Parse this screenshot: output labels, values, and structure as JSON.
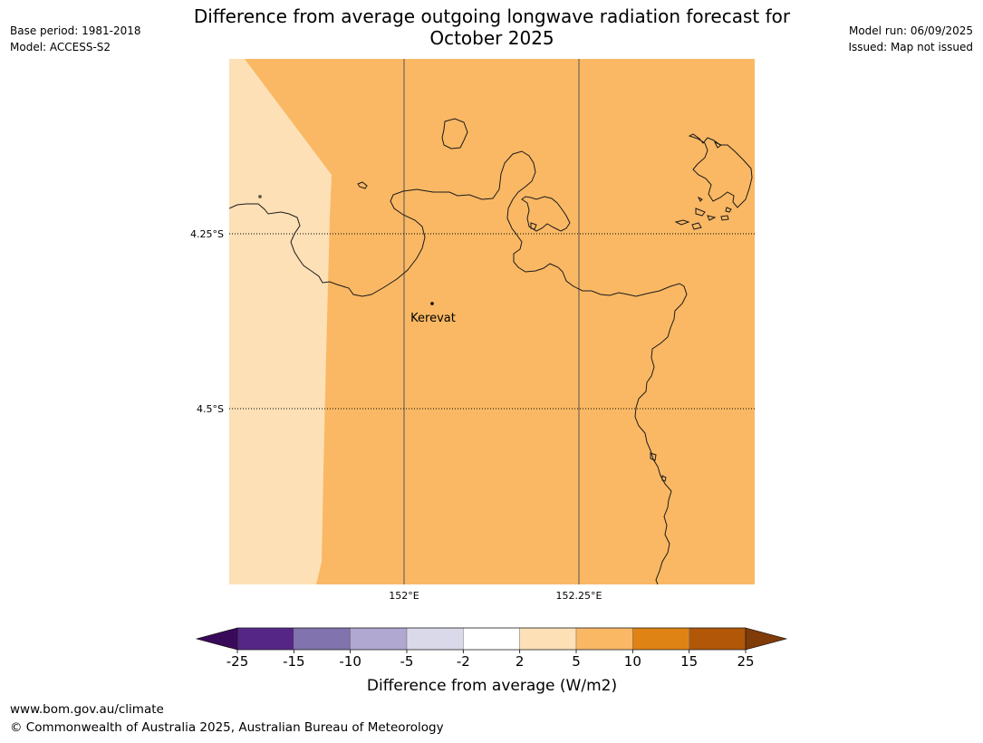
{
  "header": {
    "base_period": "Base period: 1981-2018",
    "model": "Model: ACCESS-S2",
    "model_run": "Model run: 06/09/2025",
    "issued": "Issued: Map not issued"
  },
  "title": {
    "line1": "Difference from average outgoing longwave radiation forecast for",
    "line2": "October 2025"
  },
  "map": {
    "lat_labels": [
      "4.25°S",
      "4.5°S"
    ],
    "lon_labels": [
      "152°E",
      "152.25°E"
    ],
    "place": "Kerevat",
    "region_colors": {
      "west_band": "#fde0b6",
      "main": "#fab864"
    },
    "coastline_color": "#1a1a1a"
  },
  "colorbar": {
    "ticks": [
      "-25",
      "-15",
      "-10",
      "-5",
      "-2",
      "2",
      "5",
      "10",
      "15",
      "25"
    ],
    "colors": [
      "#3a0a5a",
      "#552686",
      "#8073ae",
      "#b1a8d1",
      "#d9d9ea",
      "#ffffff",
      "#fde0b6",
      "#fab864",
      "#e08315",
      "#b25607",
      "#7f3b08"
    ],
    "label": "Difference from average (W/m2)"
  },
  "footer": {
    "url": "www.bom.gov.au/climate",
    "copyright": "© Commonwealth of Australia 2025, Australian Bureau of Meteorology"
  }
}
